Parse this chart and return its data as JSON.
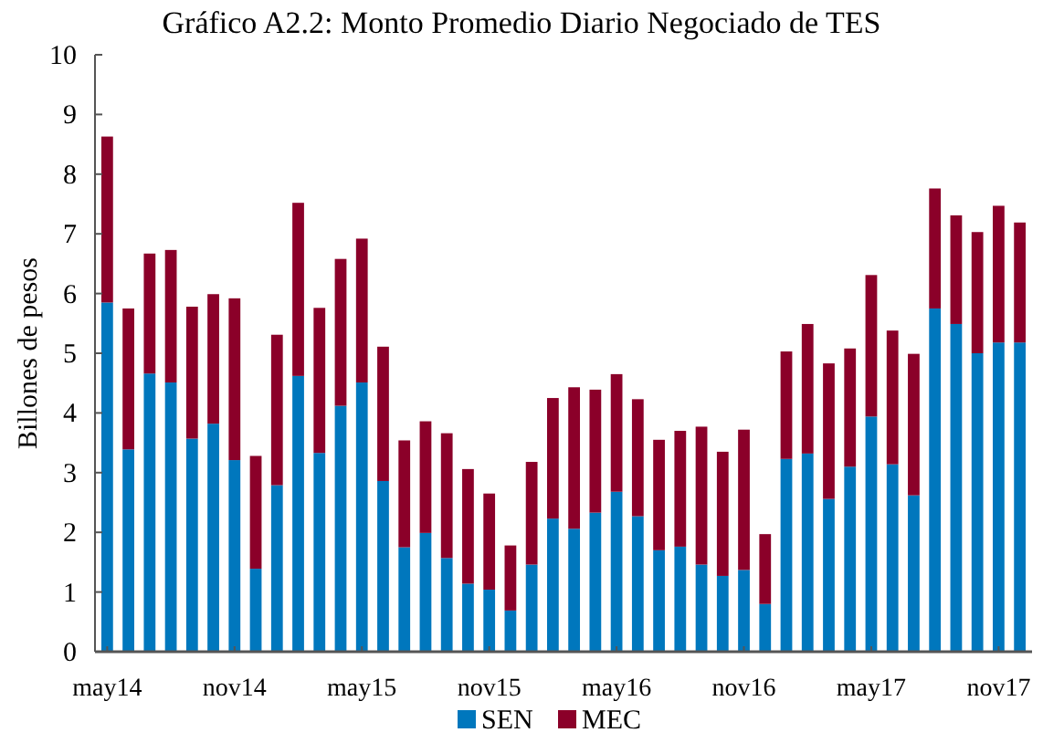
{
  "chart_data": {
    "type": "bar",
    "title": "Gráfico A2.2: Monto Promedio Diario Negociado de TES",
    "ylabel": "Billones de pesos",
    "categories": [
      "may14",
      null,
      null,
      null,
      null,
      null,
      "nov14",
      null,
      null,
      null,
      null,
      null,
      "may15",
      null,
      null,
      null,
      null,
      null,
      "nov15",
      null,
      null,
      null,
      null,
      null,
      "may16",
      null,
      null,
      null,
      null,
      null,
      "nov16",
      null,
      null,
      null,
      null,
      null,
      "may17",
      null,
      null,
      null,
      null,
      null,
      "nov17",
      null
    ],
    "series": [
      {
        "name": "SEN",
        "color": "#0077bd",
        "values": [
          5.85,
          3.39,
          4.66,
          4.51,
          3.57,
          3.82,
          3.21,
          1.39,
          2.79,
          4.62,
          3.33,
          4.12,
          4.51,
          2.86,
          1.75,
          1.99,
          1.57,
          1.14,
          1.04,
          0.69,
          1.46,
          2.23,
          2.06,
          2.33,
          2.68,
          2.27,
          1.7,
          1.76,
          1.46,
          1.27,
          1.37,
          0.8,
          3.23,
          3.32,
          2.56,
          3.1,
          3.94,
          3.14,
          2.62,
          5.75,
          5.49,
          5.0,
          5.18,
          5.18
        ]
      },
      {
        "name": "MEC",
        "color": "#8b0029",
        "values": [
          2.78,
          2.36,
          2.01,
          2.22,
          2.21,
          2.17,
          2.71,
          1.89,
          2.52,
          2.9,
          2.43,
          2.46,
          2.41,
          2.25,
          1.79,
          1.87,
          2.09,
          1.92,
          1.61,
          1.09,
          1.72,
          2.02,
          2.37,
          2.06,
          1.97,
          1.96,
          1.85,
          1.94,
          2.31,
          2.08,
          2.35,
          1.17,
          1.8,
          2.17,
          2.27,
          1.98,
          2.37,
          2.24,
          2.37,
          2.01,
          1.82,
          2.03,
          2.29,
          2.01
        ]
      }
    ],
    "stacked": true,
    "ylim": [
      0,
      10
    ],
    "yticks": [
      0,
      1,
      2,
      3,
      4,
      5,
      6,
      7,
      8,
      9,
      10
    ],
    "grid": false,
    "legend": "bottom"
  }
}
